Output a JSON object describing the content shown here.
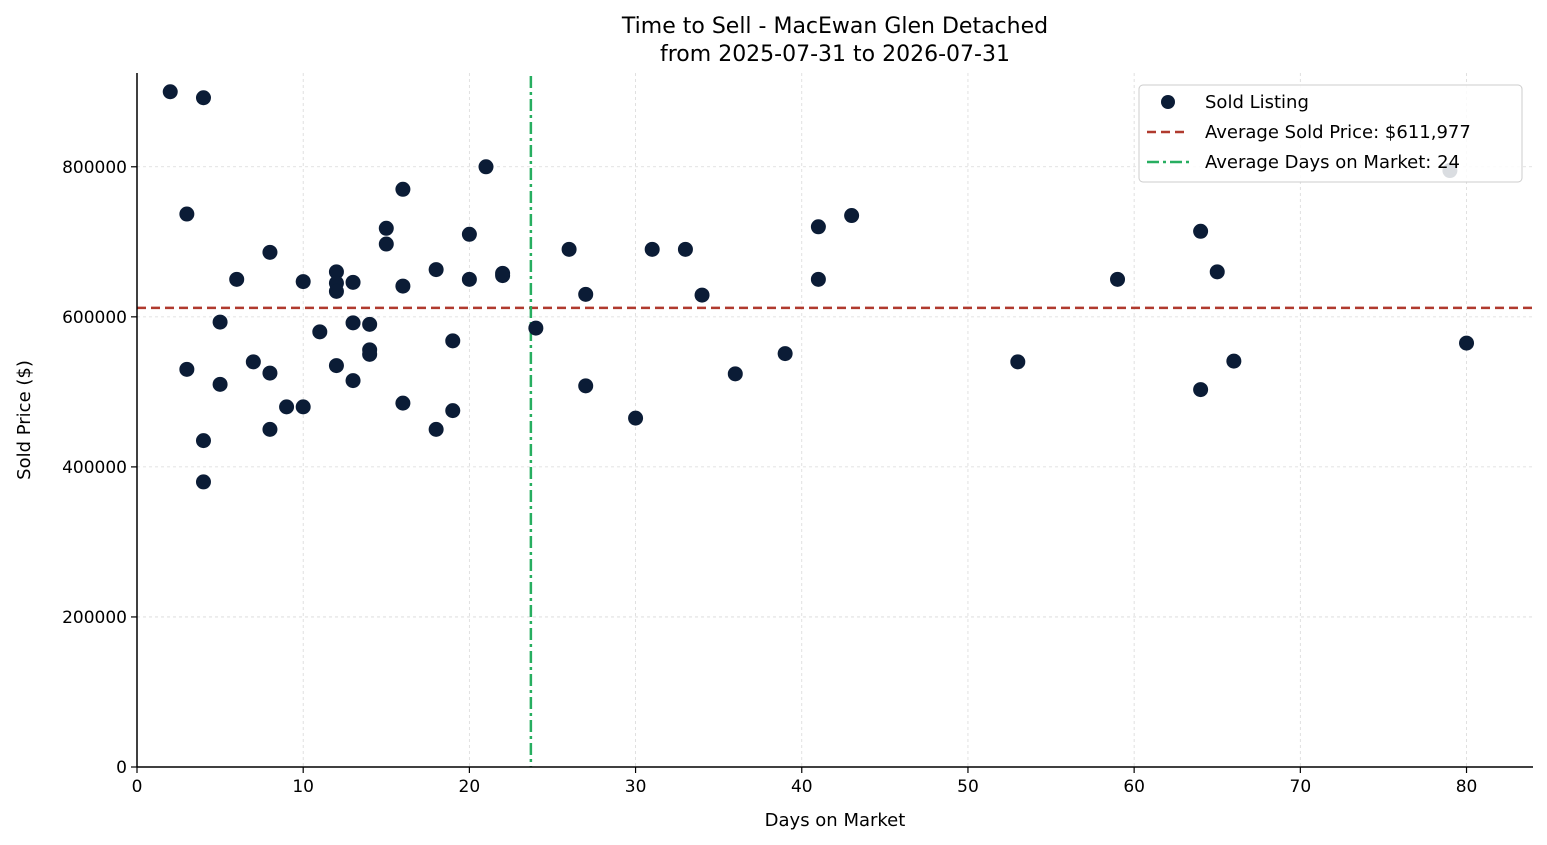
{
  "chart_data": {
    "type": "scatter",
    "title": [
      "Time to Sell - MacEwan Glen Detached",
      "from 2025-07-31 to 2026-07-31"
    ],
    "xlabel": "Days on Market",
    "ylabel": "Sold Price ($)",
    "xlim": [
      0,
      84
    ],
    "ylim": [
      0,
      925000
    ],
    "xticks": [
      0,
      10,
      20,
      30,
      40,
      50,
      60,
      70,
      80
    ],
    "yticks": [
      0,
      200000,
      400000,
      600000,
      800000
    ],
    "grid": true,
    "legend_position": "top-right",
    "series": [
      {
        "name": "Sold Listing",
        "color": "#0b1c36",
        "points": [
          [
            2,
            900000
          ],
          [
            4,
            892000
          ],
          [
            3,
            737000
          ],
          [
            3,
            530000
          ],
          [
            4,
            435000
          ],
          [
            4,
            380000
          ],
          [
            5,
            593000
          ],
          [
            5,
            510000
          ],
          [
            6,
            650000
          ],
          [
            7,
            540000
          ],
          [
            8,
            686000
          ],
          [
            8,
            525000
          ],
          [
            8,
            450000
          ],
          [
            9,
            480000
          ],
          [
            10,
            647000
          ],
          [
            10,
            480000
          ],
          [
            11,
            580000
          ],
          [
            12,
            660000
          ],
          [
            12,
            645000
          ],
          [
            12,
            634000
          ],
          [
            12,
            535000
          ],
          [
            13,
            646000
          ],
          [
            13,
            592000
          ],
          [
            13,
            515000
          ],
          [
            14,
            590000
          ],
          [
            14,
            556000
          ],
          [
            14,
            550000
          ],
          [
            15,
            718000
          ],
          [
            15,
            697000
          ],
          [
            16,
            770000
          ],
          [
            16,
            641000
          ],
          [
            16,
            485000
          ],
          [
            18,
            663000
          ],
          [
            18,
            450000
          ],
          [
            19,
            568000
          ],
          [
            19,
            475000
          ],
          [
            20,
            710000
          ],
          [
            20,
            650000
          ],
          [
            21,
            800000
          ],
          [
            22,
            658000
          ],
          [
            22,
            655000
          ],
          [
            24,
            585000
          ],
          [
            26,
            690000
          ],
          [
            27,
            630000
          ],
          [
            27,
            508000
          ],
          [
            30,
            465000
          ],
          [
            31,
            690000
          ],
          [
            33,
            690000
          ],
          [
            34,
            629000
          ],
          [
            36,
            524000
          ],
          [
            39,
            551000
          ],
          [
            41,
            720000
          ],
          [
            41,
            650000
          ],
          [
            43,
            735000
          ],
          [
            53,
            540000
          ],
          [
            59,
            650000
          ],
          [
            64,
            714000
          ],
          [
            64,
            503000
          ],
          [
            65,
            660000
          ],
          [
            66,
            541000
          ],
          [
            79,
            795000
          ],
          [
            80,
            565000
          ]
        ]
      }
    ],
    "hlines": [
      {
        "name": "Average Sold Price: $611,977",
        "value": 611977,
        "color": "#b03a2e",
        "style": "dashed"
      }
    ],
    "vlines": [
      {
        "name": "Average Days on Market: 24",
        "value": 23.7,
        "color": "#27ae60",
        "style": "dashdot"
      }
    ]
  }
}
